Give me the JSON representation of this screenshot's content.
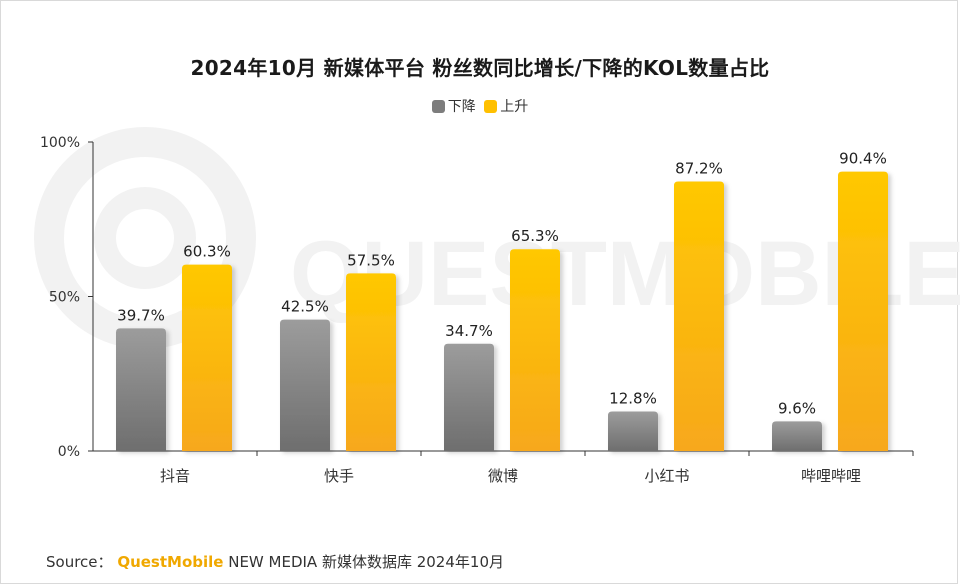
{
  "title": "2024年10月 新媒体平台 粉丝数同比增长/下降的KOL数量占比",
  "colors": {
    "series_down": "#8a8a8a",
    "series_up": "#ffc000",
    "axis": "#333333",
    "watermark": "#f1f1f1"
  },
  "watermark_text": "QUESTMOBILE",
  "source": {
    "label": "Source：",
    "brand": "QuestMobile",
    "text": "NEW MEDIA 新媒体数据库 2024年10月"
  },
  "chart_data": {
    "type": "bar",
    "title": "2024年10月 新媒体平台 粉丝数同比增长/下降的KOL数量占比",
    "categories": [
      "抖音",
      "快手",
      "微博",
      "小红书",
      "哔哩哔哩"
    ],
    "series": [
      {
        "name": "下降",
        "values": [
          39.7,
          42.5,
          34.7,
          12.8,
          9.6
        ],
        "labels": [
          "39.7%",
          "42.5%",
          "34.7%",
          "12.8%",
          "9.6%"
        ]
      },
      {
        "name": "上升",
        "values": [
          60.3,
          57.5,
          65.3,
          87.2,
          90.4
        ],
        "labels": [
          "60.3%",
          "57.5%",
          "65.3%",
          "87.2%",
          "90.4%"
        ]
      }
    ],
    "ylim": [
      0,
      100
    ],
    "yticks": [
      "0%",
      "50%",
      "100%"
    ],
    "ytick_values": [
      0,
      50,
      100
    ],
    "legend_position": "top-center",
    "grid": false
  }
}
